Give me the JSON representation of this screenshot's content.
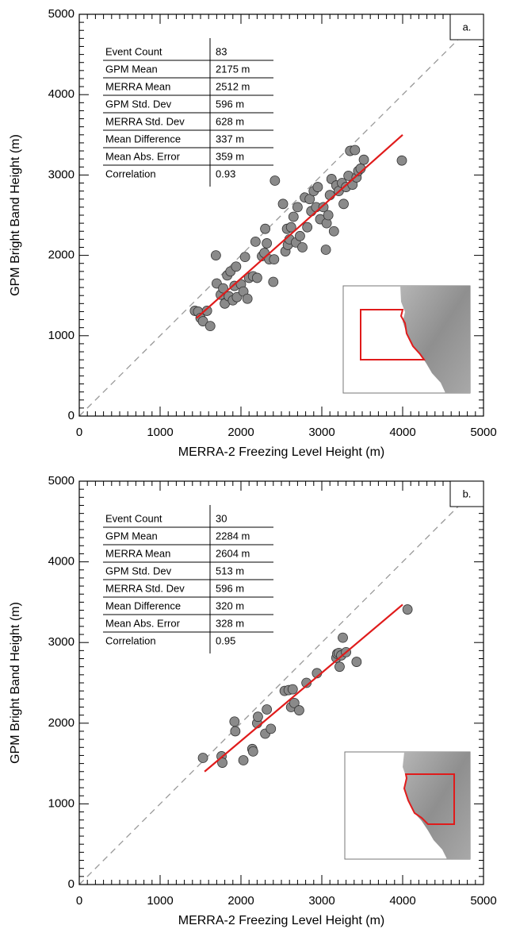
{
  "chart_data": [
    {
      "type": "scatter",
      "panel_label": "a.",
      "xlabel": "MERRA-2  Freezing Level Height (m)",
      "ylabel": "GPM Bright Band Height (m)",
      "xlim": [
        0,
        5000
      ],
      "ylim": [
        0,
        5000
      ],
      "xticks": [
        0,
        1000,
        2000,
        3000,
        4000,
        5000
      ],
      "yticks": [
        0,
        1000,
        2000,
        3000,
        4000,
        5000
      ],
      "color": "#8a8a8a",
      "stats": [
        [
          "Event Count",
          "83"
        ],
        [
          "GPM Mean",
          "2175 m"
        ],
        [
          "MERRA Mean",
          "2512 m"
        ],
        [
          "GPM Std. Dev",
          "596 m"
        ],
        [
          "MERRA Std. Dev",
          "628 m"
        ],
        [
          "Mean Difference",
          "337 m"
        ],
        [
          "Mean Abs. Error",
          "359 m"
        ],
        [
          "Correlation",
          "0.93"
        ]
      ],
      "x": [
        1430,
        1470,
        1500,
        1530,
        1580,
        1620,
        1690,
        1700,
        1750,
        1780,
        1800,
        1830,
        1850,
        1870,
        1900,
        1920,
        1940,
        1950,
        2000,
        2030,
        2050,
        2080,
        2100,
        2150,
        2180,
        2200,
        2260,
        2290,
        2300,
        2320,
        2350,
        2400,
        2410,
        2420,
        2520,
        2550,
        2570,
        2580,
        2600,
        2620,
        2650,
        2680,
        2700,
        2730,
        2760,
        2790,
        2820,
        2850,
        2870,
        2900,
        2930,
        2950,
        2980,
        3020,
        3050,
        3060,
        3080,
        3100,
        3120,
        3150,
        3180,
        3210,
        3250,
        3270,
        3300,
        3330,
        3350,
        3380,
        3410,
        3430,
        3450,
        3480,
        3520,
        3990
      ],
      "y": [
        1310,
        1300,
        1220,
        1180,
        1310,
        1120,
        2000,
        1650,
        1510,
        1590,
        1400,
        1750,
        1490,
        1800,
        1440,
        1620,
        1860,
        1480,
        1640,
        1550,
        1980,
        1460,
        1720,
        1740,
        2170,
        1720,
        1990,
        2030,
        2330,
        2150,
        1950,
        1670,
        1950,
        2930,
        2640,
        2050,
        2330,
        2130,
        2200,
        2350,
        2480,
        2160,
        2600,
        2240,
        2100,
        2720,
        2350,
        2700,
        2550,
        2800,
        2600,
        2850,
        2450,
        2600,
        2070,
        2400,
        2500,
        2750,
        2950,
        2300,
        2870,
        2800,
        2900,
        2640,
        2850,
        2990,
        3300,
        2880,
        3310,
        2970,
        3050,
        3080,
        3190,
        3180
      ],
      "fit_line": {
        "color": "#e01b1b",
        "x": [
          1450,
          4000
        ],
        "y": [
          1220,
          3500
        ]
      }
    },
    {
      "type": "scatter",
      "panel_label": "b.",
      "xlabel": "MERRA-2  Freezing Level Height (m)",
      "ylabel": "GPM Bright Band Height (m)",
      "xlim": [
        0,
        5000
      ],
      "ylim": [
        0,
        5000
      ],
      "xticks": [
        0,
        1000,
        2000,
        3000,
        4000,
        5000
      ],
      "yticks": [
        0,
        1000,
        2000,
        3000,
        4000,
        5000
      ],
      "color": "#8a8a8a",
      "stats": [
        [
          "Event Count",
          "30"
        ],
        [
          "GPM Mean",
          "2284 m"
        ],
        [
          "MERRA Mean",
          "2604 m"
        ],
        [
          "GPM Std. Dev",
          "513 m"
        ],
        [
          "MERRA Std. Dev",
          "596 m"
        ],
        [
          "Mean Difference",
          "320 m"
        ],
        [
          "Mean Abs. Error",
          "328 m"
        ],
        [
          "Correlation",
          "0.95"
        ]
      ],
      "x": [
        1530,
        1760,
        1770,
        1920,
        1930,
        2030,
        2140,
        2150,
        2200,
        2210,
        2300,
        2320,
        2370,
        2540,
        2590,
        2620,
        2640,
        2660,
        2720,
        2810,
        2940,
        3180,
        3190,
        3210,
        3220,
        3240,
        3260,
        3300,
        3430,
        4060
      ],
      "y": [
        1570,
        1590,
        1510,
        2020,
        1900,
        1540,
        1680,
        1650,
        2000,
        2080,
        1870,
        2170,
        1930,
        2400,
        2410,
        2200,
        2420,
        2250,
        2160,
        2500,
        2620,
        2810,
        2860,
        2870,
        2700,
        2840,
        3060,
        2880,
        2760,
        3410
      ],
      "fit_line": {
        "color": "#e01b1b",
        "x": [
          1550,
          4000
        ],
        "y": [
          1400,
          3470
        ]
      }
    }
  ]
}
